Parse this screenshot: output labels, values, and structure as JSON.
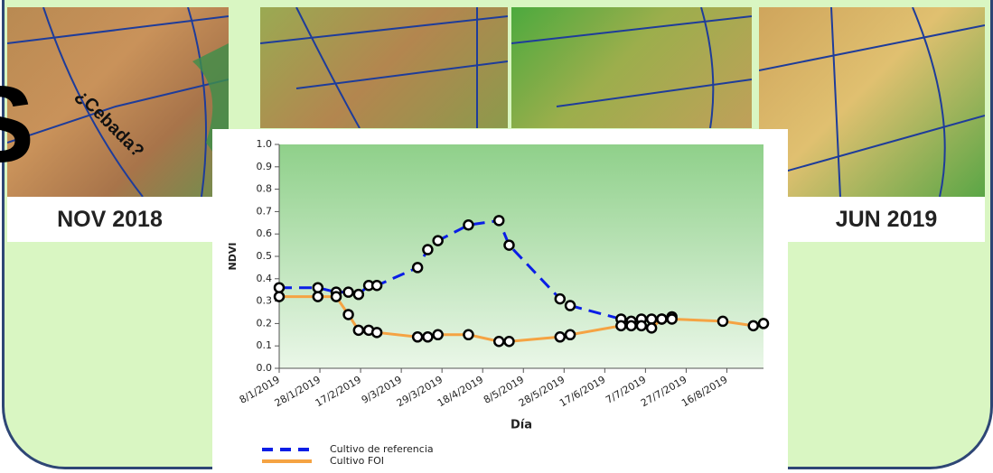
{
  "slide": {
    "labels": [
      "NOV 2018",
      "JUN 2019"
    ],
    "annotation": "¿Cebada?",
    "heading_fragment": "S"
  },
  "chart_data": {
    "type": "line",
    "x_label": "Día",
    "y_label": "NDVI",
    "x": [
      "2019-01-08",
      "2019-01-27",
      "2019-02-05",
      "2019-02-11",
      "2019-02-16",
      "2019-02-21",
      "2019-02-25",
      "2019-03-17",
      "2019-03-22",
      "2019-03-27",
      "2019-04-11",
      "2019-04-26",
      "2019-05-01",
      "2019-05-26",
      "2019-05-31",
      "2019-06-25",
      "2019-06-30",
      "2019-07-05",
      "2019-07-10",
      "2019-07-15",
      "2019-07-20",
      "2019-08-14",
      "2019-08-29",
      "2019-09-03"
    ],
    "series": [
      {
        "name": "Cultivo de referencia",
        "color": "#0a1ee6",
        "dashed": true,
        "values": [
          0.36,
          0.36,
          0.34,
          0.34,
          0.33,
          0.37,
          0.37,
          0.45,
          0.53,
          0.57,
          0.64,
          0.66,
          0.55,
          0.31,
          0.28,
          0.22,
          0.21,
          0.22,
          0.22,
          0.22,
          0.23,
          null,
          null,
          null
        ]
      },
      {
        "name": "Cultivo FOI",
        "color": "#f5a343",
        "dashed": false,
        "values": [
          0.32,
          0.32,
          0.32,
          0.24,
          0.17,
          0.17,
          0.16,
          0.14,
          0.14,
          0.15,
          0.15,
          0.12,
          0.12,
          0.14,
          0.15,
          0.19,
          0.19,
          0.19,
          0.18,
          0.22,
          0.22,
          0.21,
          0.19,
          0.2
        ]
      }
    ],
    "xlim": [
      "2019-01-08",
      "2019-09-03"
    ],
    "xticks": [
      {
        "value": "2019-01-08",
        "label": "8/1/2019"
      },
      {
        "value": "2019-01-28",
        "label": "28/1/2019"
      },
      {
        "value": "2019-02-17",
        "label": "17/2/2019"
      },
      {
        "value": "2019-03-09",
        "label": "9/3/2019"
      },
      {
        "value": "2019-03-29",
        "label": "29/3/2019"
      },
      {
        "value": "2019-04-18",
        "label": "18/4/2019"
      },
      {
        "value": "2019-05-08",
        "label": "8/5/2019"
      },
      {
        "value": "2019-05-28",
        "label": "28/5/2019"
      },
      {
        "value": "2019-06-17",
        "label": "17/6/2019"
      },
      {
        "value": "2019-07-07",
        "label": "7/7/2019"
      },
      {
        "value": "2019-07-27",
        "label": "27/7/2019"
      },
      {
        "value": "2019-08-16",
        "label": "16/8/2019"
      }
    ],
    "ylim": [
      0,
      1
    ],
    "yticks": [
      {
        "value": 0,
        "label": "0.0"
      },
      0.1,
      0.2,
      0.3,
      0.4,
      0.5,
      0.6,
      0.7,
      0.8,
      0.9,
      {
        "value": 1,
        "label": "1.0"
      }
    ]
  }
}
